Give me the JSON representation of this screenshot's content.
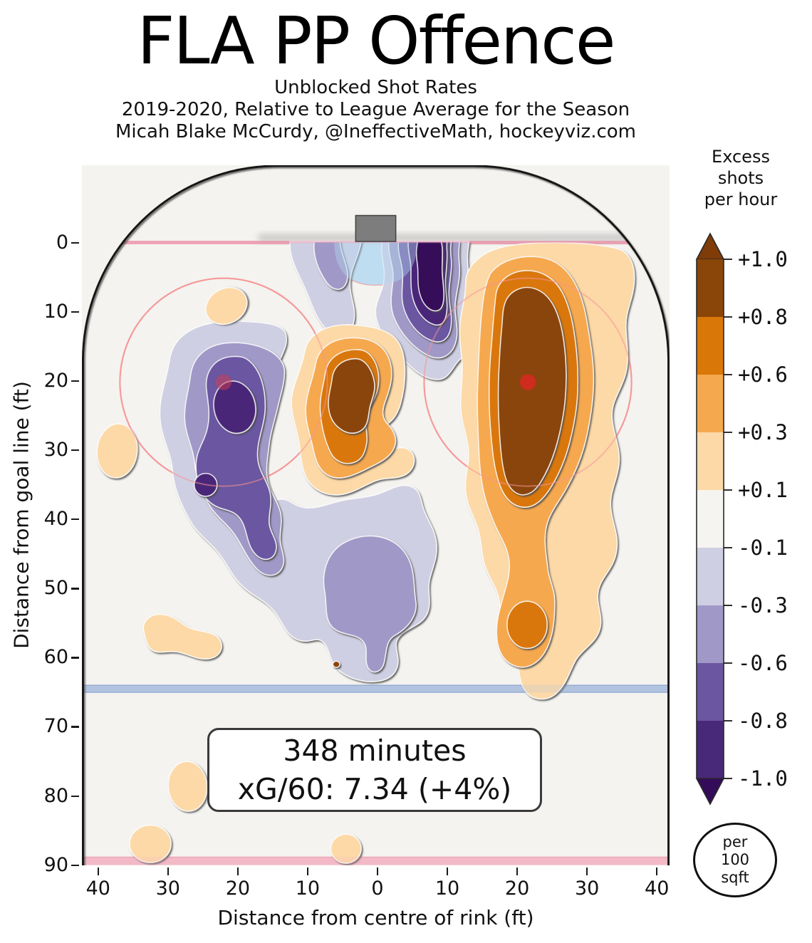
{
  "header": {
    "title": "FLA PP Offence",
    "subtitle1": "Unblocked Shot Rates",
    "subtitle2": "2019-2020, Relative to League Average for the Season",
    "subtitle3": "Micah Blake McCurdy, @IneffectiveMath, hockeyviz.com"
  },
  "stat_box": {
    "line1": "348 minutes",
    "line2": "xG/60: 7.34 (+4%)"
  },
  "badge": {
    "line1": "per",
    "line2": "100",
    "line3": "sqft"
  },
  "colorbar": {
    "title_line1": "Excess",
    "title_line2": "shots",
    "title_line3": "per hour",
    "tick_labels": [
      "+1.0",
      "+0.8",
      "+0.6",
      "+0.3",
      "+0.1",
      "-0.1",
      "-0.3",
      "-0.6",
      "-0.8",
      "-1.0"
    ],
    "band_colors": [
      "#8a4509",
      "#d97708",
      "#f6a84f",
      "#fcd9a7",
      "#f5f4f0",
      "#cfcfe3",
      "#a099c7",
      "#6b56a1",
      "#482878"
    ],
    "arrow_top_color": "#7f3b08",
    "arrow_bottom_color": "#340b59"
  },
  "palette": {
    "plot_bg": "#f4f3f0",
    "boards": "#141414",
    "goal_line": "#f0a3b6",
    "goal_line_overlay": "rgba(240,160,182,0.5)",
    "crease": "#c9e2f2",
    "crease_overlay": "rgba(178,215,240,0.42)",
    "circle": "#f79f9f",
    "circle_overlay": "rgba(246,148,148,0.55)",
    "dot": "#cd2c1e",
    "dot_faint": "rgba(210,60,80,0.5)",
    "blue_line": "#b3c3e1",
    "blue_edge": "#8ea6cf",
    "red_line": "#f3bac7",
    "red_edge": "#e9a2b4",
    "net_fill": "#7d7d7d",
    "net_edge": "#454545",
    "shadow_band": "#8a8a8a",
    "c_p4": "#8a4509",
    "c_p3": "#d97708",
    "c_p2": "#f6a84f",
    "c_p1": "#fcd9a7",
    "c_0": "#f5f4f0",
    "c_m1": "#cfcfe3",
    "c_m2": "#a099c7",
    "c_m3": "#6b56a1",
    "c_m4": "#482878",
    "arrow_hi": "#7f3b08",
    "arrow_lo": "#340b59"
  },
  "chart_data": {
    "type": "filled_contour_heatmap",
    "title": "FLA PP Offence",
    "subtitle": [
      "Unblocked Shot Rates",
      "2019-2020, Relative to League Average for the Season",
      "Micah Blake McCurdy, @IneffectiveMath, hockeyviz.com"
    ],
    "units": "Excess unblocked shots per hour per 100 sqft, relative to league average",
    "xlabel": "Distance from centre of rink (ft)",
    "ylabel": "Distance from goal line (ft)",
    "xlim": [
      -42.5,
      42.5
    ],
    "ylim": [
      90,
      -11
    ],
    "x_tick_positions": [
      -40,
      -30,
      -20,
      -10,
      0,
      10,
      20,
      30,
      40
    ],
    "x_tick_labels": [
      "40",
      "30",
      "20",
      "10",
      "0",
      "10",
      "20",
      "30",
      "40"
    ],
    "y_tick_positions": [
      0,
      10,
      20,
      30,
      40,
      50,
      60,
      70,
      80,
      90
    ],
    "y_tick_labels": [
      "0",
      "10",
      "20",
      "30",
      "40",
      "50",
      "60",
      "70",
      "80",
      "90"
    ],
    "level_boundaries": [
      -1.0,
      -0.8,
      -0.6,
      -0.3,
      -0.1,
      0.1,
      0.3,
      0.6,
      0.8,
      1.0
    ],
    "colorbar_extends": "both",
    "legend_position": "right",
    "stat_minutes": 348,
    "stat_xg_per_60": 7.34,
    "stat_xg_relative": "+4%",
    "positive_hotspots": [
      {
        "x": 22,
        "y": 22,
        "peak": "> +1.0",
        "note": "right faceoff circle / right flank"
      },
      {
        "x": -3,
        "y": 21,
        "peak": "> +1.0",
        "note": "high slot"
      },
      {
        "x": 21.9,
        "y": 55.3,
        "peak": "+0.7",
        "note": "right point"
      },
      {
        "x": -21.6,
        "y": 9.3,
        "peak": "+0.2",
        "note": "left of net"
      },
      {
        "x": -37.4,
        "y": 30.2,
        "peak": "+0.2",
        "note": "left boards"
      },
      {
        "x": -28.8,
        "y": 57.6,
        "peak": "+0.2",
        "note": "left half-wall"
      },
      {
        "x": -27.2,
        "y": 78.6,
        "peak": "+0.2",
        "note": "left point"
      },
      {
        "x": -32.6,
        "y": 86.9,
        "peak": "+0.2",
        "note": "near centre line left"
      },
      {
        "x": -4.3,
        "y": 87.6,
        "peak": "+0.2",
        "note": "centre point"
      }
    ],
    "negative_hotspots": [
      {
        "x": 7.5,
        "y": 7,
        "peak": "< -1.0",
        "note": "right of crease"
      },
      {
        "x": -20.4,
        "y": 23.9,
        "peak": "-0.9",
        "note": "left faceoff circle"
      },
      {
        "x": -24.6,
        "y": 35.1,
        "peak": "-0.9",
        "note": "left circle low"
      },
      {
        "x": -1,
        "y": 50.5,
        "peak": "-0.7",
        "note": "centre high slot"
      },
      {
        "x": -6.5,
        "y": 5,
        "peak": "-0.4",
        "note": "left of crease"
      }
    ],
    "rink_features": [
      "goal line",
      "goal net",
      "goal crease",
      "left faceoff circle",
      "right faceoff circle",
      "faceoff dots",
      "blue line",
      "centre red line",
      "boards with rounded corners"
    ]
  }
}
